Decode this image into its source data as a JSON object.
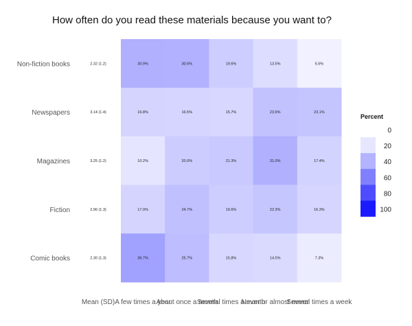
{
  "chart_data": {
    "type": "heatmap",
    "title": "How often do you read these materials because you want to?",
    "rows": [
      "Non-fiction books",
      "Newspapers",
      "Magazines",
      "Fiction",
      "Comic books"
    ],
    "mean_sd_header": "Mean (SD)",
    "mean_sd": [
      "2.32 (1.2)",
      "3.14 (1.4)",
      "3.25 (1.2)",
      "2.96 (1.3)",
      "2.30 (1.3)"
    ],
    "columns": [
      "A few times a year",
      "About once a month",
      "Several times a month",
      "Never or almost never",
      "Several times a week"
    ],
    "values": [
      [
        30.9,
        30.6,
        19.6,
        13.5,
        5.5
      ],
      [
        16.8,
        16.5,
        15.7,
        23.9,
        23.1
      ],
      [
        10.2,
        20.0,
        21.3,
        31.0,
        17.4
      ],
      [
        17.0,
        24.7,
        19.6,
        22.3,
        16.3
      ],
      [
        36.7,
        25.7,
        15.8,
        14.5,
        7.3
      ]
    ],
    "value_labels": [
      [
        "30.9%",
        "30.6%",
        "19.6%",
        "13.5%",
        "5.5%"
      ],
      [
        "16.8%",
        "16.5%",
        "15.7%",
        "23.9%",
        "23.1%"
      ],
      [
        "10.2%",
        "20.0%",
        "21.3%",
        "31.0%",
        "17.4%"
      ],
      [
        "17.0%",
        "24.7%",
        "19.6%",
        "22.3%",
        "16.3%"
      ],
      [
        "36.7%",
        "25.7%",
        "15.8%",
        "14.5%",
        "7.3%"
      ]
    ],
    "legend": {
      "title": "Percent",
      "ticks": [
        0,
        20,
        40,
        60,
        80,
        100
      ],
      "placement": "right"
    },
    "scale": {
      "min": 0,
      "max": 100
    },
    "colors": {
      "low": "#ffffff",
      "high": "#0000ff"
    }
  }
}
